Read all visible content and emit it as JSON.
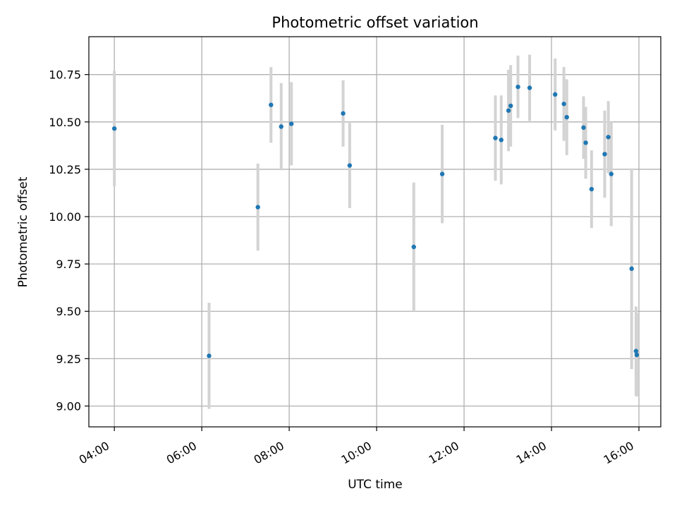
{
  "chart_data": {
    "type": "scatter",
    "title": "Photometric offset variation",
    "xlabel": "UTC time",
    "ylabel": "Photometric offset",
    "x_is_time": true,
    "x_ticks": [
      "04:00",
      "06:00",
      "08:00",
      "10:00",
      "12:00",
      "14:00",
      "16:00"
    ],
    "x_tick_hours": [
      4,
      6,
      8,
      10,
      12,
      14,
      16
    ],
    "xlim": [
      "03:25",
      "16:30"
    ],
    "y_ticks": [
      "9.00",
      "9.25",
      "9.50",
      "9.75",
      "10.00",
      "10.25",
      "10.50",
      "10.75"
    ],
    "y_tick_values": [
      9.0,
      9.25,
      9.5,
      9.75,
      10.0,
      10.25,
      10.5,
      10.75
    ],
    "ylim": [
      8.89,
      10.95
    ],
    "grid": true,
    "colors": {
      "points": "#1f77b4",
      "errorbars": "#d3d3d3",
      "grid": "#b0b0b0"
    },
    "points": [
      {
        "time": "04:00",
        "y": 10.465,
        "err": 0.305
      },
      {
        "time": "06:10",
        "y": 9.265,
        "err": 0.28
      },
      {
        "time": "07:17",
        "y": 10.05,
        "err": 0.23
      },
      {
        "time": "07:35",
        "y": 10.59,
        "err": 0.2
      },
      {
        "time": "07:49",
        "y": 10.475,
        "err": 0.23
      },
      {
        "time": "08:03",
        "y": 10.49,
        "err": 0.22
      },
      {
        "time": "09:14",
        "y": 10.545,
        "err": 0.175
      },
      {
        "time": "09:23",
        "y": 10.27,
        "err": 0.225
      },
      {
        "time": "10:51",
        "y": 9.84,
        "err": 0.34
      },
      {
        "time": "11:30",
        "y": 10.225,
        "err": 0.26
      },
      {
        "time": "12:43",
        "y": 10.415,
        "err": 0.225
      },
      {
        "time": "12:51",
        "y": 10.405,
        "err": 0.235
      },
      {
        "time": "13:01",
        "y": 10.56,
        "err": 0.215
      },
      {
        "time": "13:04",
        "y": 10.585,
        "err": 0.215
      },
      {
        "time": "13:14",
        "y": 10.685,
        "err": 0.165
      },
      {
        "time": "13:30",
        "y": 10.68,
        "err": 0.175
      },
      {
        "time": "14:05",
        "y": 10.645,
        "err": 0.19
      },
      {
        "time": "14:17",
        "y": 10.595,
        "err": 0.195
      },
      {
        "time": "14:21",
        "y": 10.525,
        "err": 0.2
      },
      {
        "time": "14:44",
        "y": 10.47,
        "err": 0.165
      },
      {
        "time": "14:47",
        "y": 10.39,
        "err": 0.19
      },
      {
        "time": "14:55",
        "y": 10.145,
        "err": 0.205
      },
      {
        "time": "15:13",
        "y": 10.33,
        "err": 0.23
      },
      {
        "time": "15:18",
        "y": 10.42,
        "err": 0.19
      },
      {
        "time": "15:22",
        "y": 10.225,
        "err": 0.275
      },
      {
        "time": "15:50",
        "y": 9.725,
        "err": 0.53
      },
      {
        "time": "15:56",
        "y": 9.29,
        "err": 0.235
      },
      {
        "time": "15:57",
        "y": 9.27,
        "err": 0.22
      }
    ]
  }
}
